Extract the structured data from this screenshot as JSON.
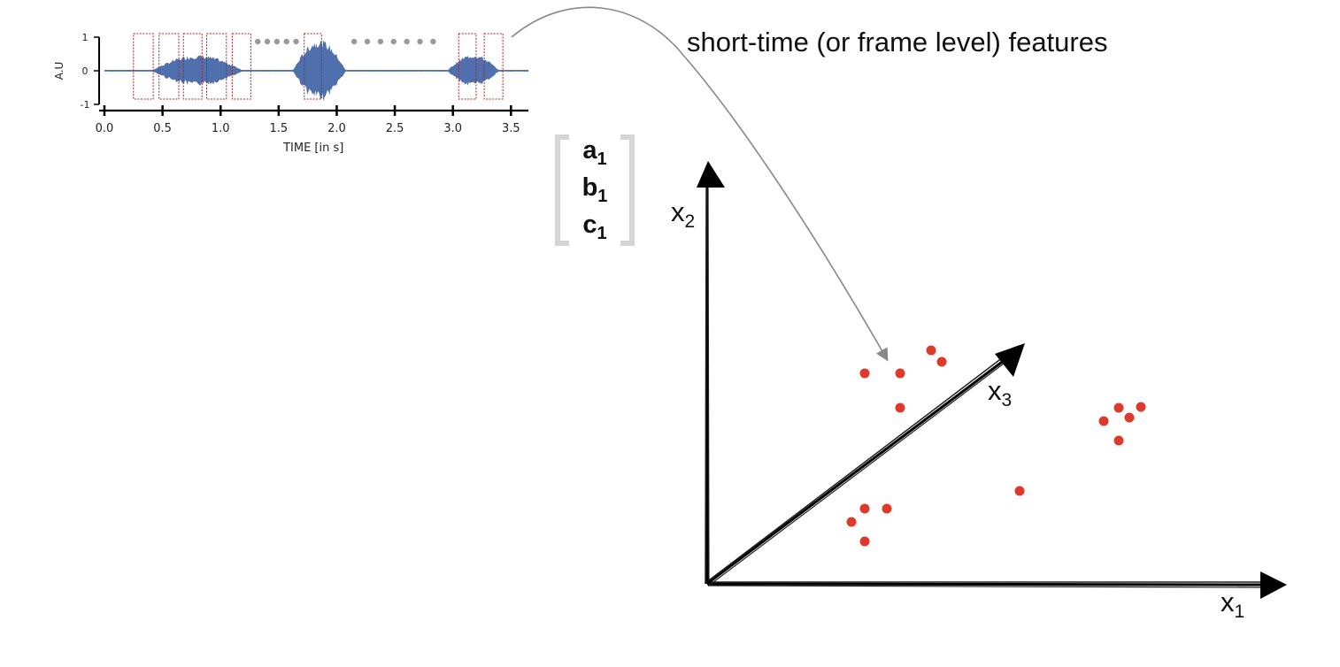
{
  "title": "short-time (or frame level) features",
  "waveform": {
    "ylabel": "A.U",
    "xlabel": "TIME [in s]",
    "xlim": [
      0.0,
      3.65
    ],
    "ylim": [
      -1,
      1
    ],
    "x_ticks": [
      "0.0",
      "0.5",
      "1.0",
      "1.5",
      "2.0",
      "2.5",
      "3.0",
      "3.5"
    ],
    "y_ticks": [
      "1",
      "0",
      "-1"
    ],
    "signal_color": "#4f6fad",
    "frame_color": "#b22222",
    "bursts": [
      {
        "start": 0.4,
        "end": 1.2,
        "peak": 0.48
      },
      {
        "start": 1.62,
        "end": 2.08,
        "peak": 0.95
      },
      {
        "start": 2.95,
        "end": 3.4,
        "peak": 0.5
      }
    ],
    "frames": [
      {
        "start": 0.25,
        "end": 0.42
      },
      {
        "start": 0.47,
        "end": 0.64
      },
      {
        "start": 0.68,
        "end": 0.84
      },
      {
        "start": 0.88,
        "end": 1.05
      },
      {
        "start": 1.1,
        "end": 1.26
      },
      {
        "start": 1.72,
        "end": 1.87
      },
      {
        "start": 3.05,
        "end": 3.2
      },
      {
        "start": 3.27,
        "end": 3.43
      }
    ],
    "dot_groups": [
      {
        "count": 5,
        "start": 1.32,
        "end": 1.65
      },
      {
        "count": 7,
        "start": 2.15,
        "end": 2.83
      }
    ]
  },
  "feature_vector": {
    "entries": [
      {
        "symbol": "a",
        "index": "1"
      },
      {
        "symbol": "b",
        "index": "1"
      },
      {
        "symbol": "c",
        "index": "1"
      }
    ]
  },
  "axes": {
    "x1": {
      "name": "x",
      "index": "1"
    },
    "x2": {
      "name": "x",
      "index": "2"
    },
    "x3": {
      "name": "x",
      "index": "3"
    }
  },
  "scatter_color": "#dd3a2b",
  "chart_data": {
    "type": "scatter",
    "xlabel": "x1",
    "ylabel": "x2",
    "series": [
      {
        "points": [
          {
            "x": 177,
            "y": 238
          },
          {
            "x": 217,
            "y": 238
          },
          {
            "x": 217,
            "y": 199
          },
          {
            "x": 252,
            "y": 264
          },
          {
            "x": 264,
            "y": 251
          },
          {
            "x": 162,
            "y": 70
          },
          {
            "x": 177,
            "y": 85
          },
          {
            "x": 202,
            "y": 85
          },
          {
            "x": 177,
            "y": 48
          },
          {
            "x": 352,
            "y": 105
          },
          {
            "x": 447,
            "y": 184
          },
          {
            "x": 464,
            "y": 199
          },
          {
            "x": 476,
            "y": 188
          },
          {
            "x": 489,
            "y": 200
          },
          {
            "x": 464,
            "y": 162
          }
        ]
      }
    ]
  }
}
